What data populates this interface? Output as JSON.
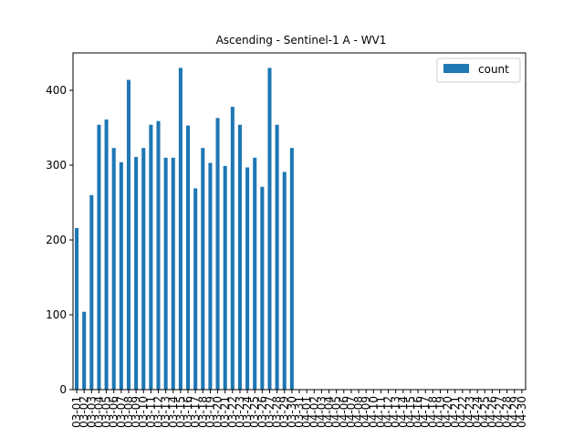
{
  "chart_data": {
    "type": "bar",
    "title": "Ascending - Sentinel-1 A - WV1",
    "xlabel": "",
    "ylabel": "",
    "ylim": [
      0,
      450
    ],
    "yticks": [
      0,
      100,
      200,
      300,
      400
    ],
    "grid": false,
    "legend_position": "top-right",
    "series": [
      {
        "name": "count",
        "color": "#1f77b4",
        "values": [
          216,
          104,
          260,
          354,
          361,
          323,
          304,
          414,
          311,
          323,
          354,
          359,
          310,
          310,
          430,
          353,
          269,
          323,
          303,
          363,
          299,
          378,
          354,
          297,
          310,
          271,
          430,
          354,
          291,
          323,
          0,
          0,
          0,
          0,
          0,
          0,
          0,
          0,
          0,
          0,
          0,
          0,
          0,
          0,
          0,
          0,
          0,
          0,
          0,
          0,
          0,
          0,
          0,
          0,
          0,
          0,
          0,
          0,
          0,
          0,
          0
        ]
      }
    ],
    "categories": [
      "03-01",
      "03-02",
      "03-03",
      "03-04",
      "03-05",
      "03-06",
      "03-07",
      "03-08",
      "03-09",
      "03-10",
      "03-11",
      "03-12",
      "03-13",
      "03-14",
      "03-15",
      "03-16",
      "03-17",
      "03-18",
      "03-19",
      "03-20",
      "03-21",
      "03-22",
      "03-23",
      "03-24",
      "03-25",
      "03-26",
      "03-27",
      "03-28",
      "03-29",
      "03-30",
      "03-31",
      "04-01",
      "04-02",
      "04-03",
      "04-04",
      "04-05",
      "04-06",
      "04-07",
      "04-08",
      "04-09",
      "04-10",
      "04-11",
      "04-12",
      "04-13",
      "04-14",
      "04-15",
      "04-16",
      "04-17",
      "04-18",
      "04-19",
      "04-20",
      "04-21",
      "04-22",
      "04-23",
      "04-24",
      "04-25",
      "04-26",
      "04-27",
      "04-28",
      "04-29",
      "04-30"
    ]
  }
}
